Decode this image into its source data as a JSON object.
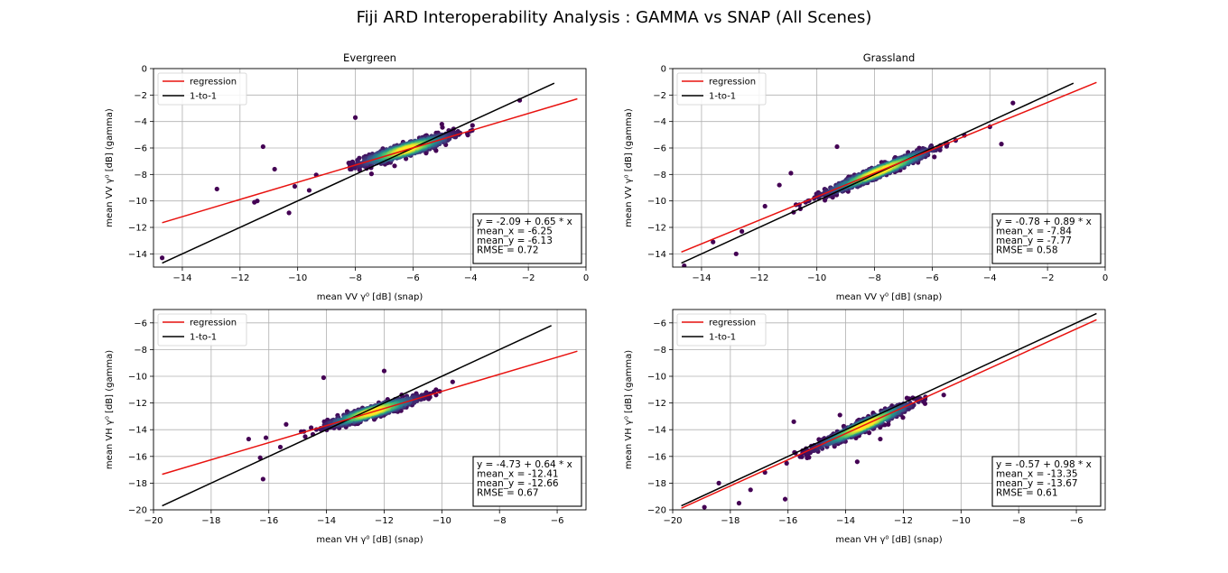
{
  "figure": {
    "title": "Fiji ARD Interoperability Analysis : GAMMA vs SNAP (All Scenes)"
  },
  "legend": {
    "regression": "regression",
    "one_to_one": "1-to-1"
  },
  "colors": {
    "regression": "#e8120f",
    "one_to_one": "#000000",
    "scatter_low": "#440154",
    "scatter_mid": "#21918c",
    "scatter_high": "#fde725",
    "grid": "#b0b0b0"
  },
  "chart_data": [
    {
      "type": "scatter",
      "title": "Evergreen",
      "xlabel": "mean VV γ⁰ [dB] (snap)",
      "ylabel": "mean VV γ⁰ [dB] (gamma)",
      "xlim": [
        -15,
        0
      ],
      "ylim": [
        -15,
        0
      ],
      "xticks": [
        -14,
        -12,
        -10,
        -8,
        -6,
        -4,
        -2,
        0
      ],
      "yticks": [
        -14,
        -12,
        -10,
        -8,
        -6,
        -4,
        -2,
        0
      ],
      "grid": true,
      "legend_position": "upper-left",
      "regression": {
        "intercept": -2.09,
        "slope": 0.65,
        "x_range": [
          -14.7,
          -0.3
        ]
      },
      "one_to_one": {
        "x_range": [
          -14.7,
          -1.1
        ]
      },
      "cloud": {
        "center": [
          -6.25,
          -6.13
        ],
        "spread": [
          2.0,
          1.3
        ],
        "n": 900
      },
      "outliers": [
        [
          -14.7,
          -14.3
        ],
        [
          -12.8,
          -9.1
        ],
        [
          -11.5,
          -10.1
        ],
        [
          -11.2,
          -5.9
        ],
        [
          -10.8,
          -7.6
        ],
        [
          -10.3,
          -10.9
        ],
        [
          -9.6,
          -9.2
        ],
        [
          -2.3,
          -2.4
        ],
        [
          -8.0,
          -3.7
        ],
        [
          -5.0,
          -4.2
        ],
        [
          -11.4,
          -10.0
        ],
        [
          -10.1,
          -8.9
        ]
      ],
      "stats": [
        "y = -2.09 + 0.65 * x",
        "mean_x = -6.25",
        "mean_y = -6.13",
        "RMSE = 0.72"
      ]
    },
    {
      "type": "scatter",
      "title": "Grassland",
      "xlabel": "mean VV γ⁰ [dB] (snap)",
      "ylabel": "mean VV γ⁰ [dB] (gamma)",
      "xlim": [
        -15,
        0
      ],
      "ylim": [
        -15,
        0
      ],
      "xticks": [
        -14,
        -12,
        -10,
        -8,
        -6,
        -4,
        -2,
        0
      ],
      "yticks": [
        -14,
        -12,
        -10,
        -8,
        -6,
        -4,
        -2,
        0
      ],
      "grid": true,
      "legend_position": "upper-left",
      "regression": {
        "intercept": -0.78,
        "slope": 0.89,
        "x_range": [
          -14.7,
          -0.3
        ]
      },
      "one_to_one": {
        "x_range": [
          -14.7,
          -1.1
        ]
      },
      "cloud": {
        "center": [
          -7.84,
          -7.77
        ],
        "spread": [
          2.4,
          1.1
        ],
        "n": 900
      },
      "outliers": [
        [
          -14.6,
          -14.9
        ],
        [
          -13.6,
          -13.1
        ],
        [
          -12.8,
          -14.0
        ],
        [
          -12.6,
          -12.3
        ],
        [
          -11.8,
          -10.4
        ],
        [
          -11.3,
          -8.8
        ],
        [
          -9.3,
          -5.9
        ],
        [
          -3.2,
          -2.6
        ],
        [
          -3.6,
          -5.7
        ],
        [
          -4.0,
          -4.4
        ],
        [
          -10.9,
          -7.9
        ]
      ],
      "stats": [
        "y = -0.78 + 0.89 * x",
        "mean_x = -7.84",
        "mean_y = -7.77",
        "RMSE = 0.58"
      ]
    },
    {
      "type": "scatter",
      "title": "",
      "xlabel": "mean VH γ⁰ [dB] (snap)",
      "ylabel": "mean VH γ⁰ [dB] (gamma)",
      "xlim": [
        -20,
        -5
      ],
      "ylim": [
        -20,
        -5
      ],
      "xticks": [
        -20,
        -18,
        -16,
        -14,
        -12,
        -10,
        -8,
        -6
      ],
      "yticks": [
        -20,
        -18,
        -16,
        -14,
        -12,
        -10,
        -8,
        -6
      ],
      "grid": true,
      "legend_position": "upper-left",
      "regression": {
        "intercept": -4.73,
        "slope": 0.64,
        "x_range": [
          -19.7,
          -5.3
        ]
      },
      "one_to_one": {
        "x_range": [
          -19.7,
          -6.2
        ]
      },
      "cloud": {
        "center": [
          -12.41,
          -12.66
        ],
        "spread": [
          2.0,
          1.1
        ],
        "n": 900
      },
      "outliers": [
        [
          -16.2,
          -17.7
        ],
        [
          -16.3,
          -16.1
        ],
        [
          -16.7,
          -14.7
        ],
        [
          -15.6,
          -15.3
        ],
        [
          -14.1,
          -10.1
        ],
        [
          -12.0,
          -9.6
        ],
        [
          -10.2,
          -11.4
        ],
        [
          -15.4,
          -13.6
        ],
        [
          -16.1,
          -14.6
        ]
      ],
      "stats": [
        "y = -4.73 + 0.64 * x",
        "mean_x = -12.41",
        "mean_y = -12.66",
        "RMSE = 0.67"
      ]
    },
    {
      "type": "scatter",
      "title": "",
      "xlabel": "mean VH γ⁰ [dB] (snap)",
      "ylabel": "mean VH γ⁰ [dB] (gamma)",
      "xlim": [
        -20,
        -5
      ],
      "ylim": [
        -20,
        -5
      ],
      "xticks": [
        -20,
        -18,
        -16,
        -14,
        -12,
        -10,
        -8,
        -6
      ],
      "yticks": [
        -20,
        -18,
        -16,
        -14,
        -12,
        -10,
        -8,
        -6
      ],
      "grid": true,
      "legend_position": "upper-left",
      "regression": {
        "intercept": -0.57,
        "slope": 0.98,
        "x_range": [
          -19.7,
          -5.3
        ]
      },
      "one_to_one": {
        "x_range": [
          -19.7,
          -5.3
        ]
      },
      "cloud": {
        "center": [
          -13.35,
          -13.67
        ],
        "spread": [
          2.1,
          1.1
        ],
        "n": 900
      },
      "outliers": [
        [
          -18.9,
          -19.8
        ],
        [
          -18.4,
          -18.0
        ],
        [
          -17.7,
          -19.5
        ],
        [
          -17.3,
          -18.5
        ],
        [
          -16.8,
          -17.2
        ],
        [
          -16.1,
          -19.2
        ],
        [
          -15.8,
          -13.4
        ],
        [
          -14.2,
          -12.9
        ],
        [
          -13.6,
          -16.4
        ],
        [
          -10.6,
          -11.4
        ],
        [
          -12.8,
          -14.7
        ]
      ],
      "stats": [
        "y = -0.57 + 0.98 * x",
        "mean_x = -13.35",
        "mean_y = -13.67",
        "RMSE = 0.61"
      ]
    }
  ]
}
